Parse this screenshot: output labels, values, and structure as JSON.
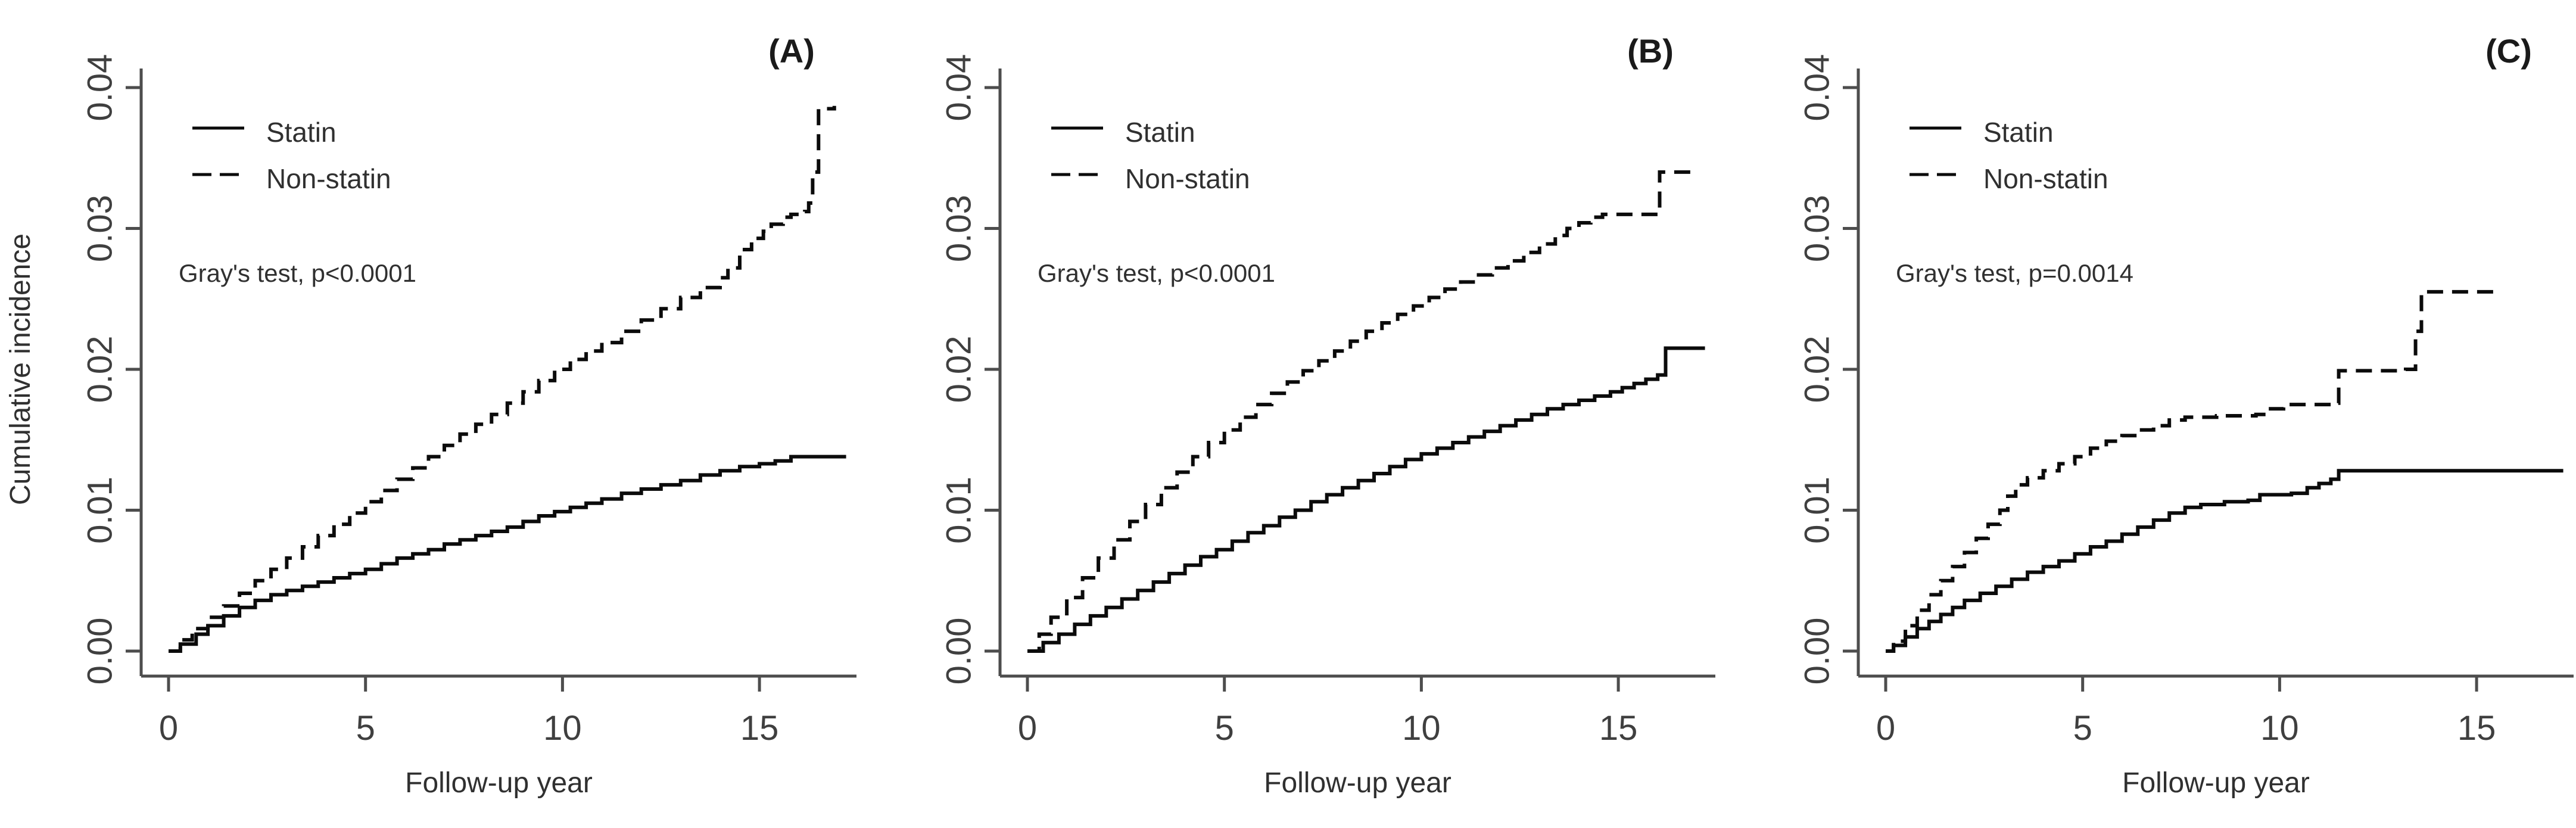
{
  "figure": {
    "background": "#ffffff",
    "xlabel": "Follow-up year",
    "ylabel": "Cumulative incidence",
    "legend": {
      "statin_label": "Statin",
      "non_statin_label": "Non-statin"
    },
    "x_tick_labels": [
      "0",
      "5",
      "10",
      "15"
    ],
    "y_tick_labels": [
      "0.00",
      "0.01",
      "0.02",
      "0.03",
      "0.04"
    ],
    "colors": {
      "curve": "#0b0b0b",
      "axis": "#4d4d4d",
      "tick_text": "#3f3f3f",
      "text": "#303030"
    }
  },
  "chart_data": [
    {
      "type": "line",
      "subtype": "step-cumulative-incidence",
      "panel_label": "(A)",
      "annotation": "Gray's test, p<0.0001",
      "xlabel": "Follow-up year",
      "ylabel": "Cumulative incidence",
      "xlim": [
        0,
        17.5
      ],
      "ylim": [
        0,
        0.04
      ],
      "x_ticks": [
        0,
        5,
        10,
        15
      ],
      "y_ticks": [
        0,
        0.01,
        0.02,
        0.03,
        0.04
      ],
      "grid": false,
      "legend_position": "inside-top-left",
      "series": [
        {
          "name": "Statin",
          "style": "solid",
          "points": [
            [
              0,
              0
            ],
            [
              0.3,
              0.0005
            ],
            [
              0.7,
              0.0012
            ],
            [
              1,
              0.0018
            ],
            [
              1.4,
              0.0025
            ],
            [
              1.8,
              0.0031
            ],
            [
              2.2,
              0.0036
            ],
            [
              2.6,
              0.004
            ],
            [
              3,
              0.0043
            ],
            [
              3.4,
              0.0046
            ],
            [
              3.8,
              0.0049
            ],
            [
              4.2,
              0.0052
            ],
            [
              4.6,
              0.0055
            ],
            [
              5,
              0.0058
            ],
            [
              5.4,
              0.0062
            ],
            [
              5.8,
              0.0066
            ],
            [
              6.2,
              0.0069
            ],
            [
              6.6,
              0.0072
            ],
            [
              7,
              0.0076
            ],
            [
              7.4,
              0.0079
            ],
            [
              7.8,
              0.0082
            ],
            [
              8.2,
              0.0085
            ],
            [
              8.6,
              0.0088
            ],
            [
              9,
              0.0092
            ],
            [
              9.4,
              0.0096
            ],
            [
              9.8,
              0.0099
            ],
            [
              10.2,
              0.0102
            ],
            [
              10.6,
              0.0105
            ],
            [
              11,
              0.0108
            ],
            [
              11.5,
              0.0112
            ],
            [
              12,
              0.0115
            ],
            [
              12.5,
              0.0118
            ],
            [
              13,
              0.0121
            ],
            [
              13.5,
              0.0125
            ],
            [
              14,
              0.0128
            ],
            [
              14.5,
              0.0131
            ],
            [
              15,
              0.0133
            ],
            [
              15.4,
              0.0135
            ],
            [
              15.8,
              0.0138
            ],
            [
              17.2,
              0.0138
            ]
          ]
        },
        {
          "name": "Non-statin",
          "style": "dashed",
          "points": [
            [
              0,
              0
            ],
            [
              0.3,
              0.0008
            ],
            [
              0.6,
              0.0016
            ],
            [
              1,
              0.0024
            ],
            [
              1.4,
              0.0032
            ],
            [
              1.8,
              0.0041
            ],
            [
              2.2,
              0.005
            ],
            [
              2.6,
              0.0058
            ],
            [
              3,
              0.0066
            ],
            [
              3.4,
              0.0074
            ],
            [
              3.8,
              0.0082
            ],
            [
              4.2,
              0.009
            ],
            [
              4.6,
              0.0098
            ],
            [
              5,
              0.0106
            ],
            [
              5.4,
              0.0114
            ],
            [
              5.8,
              0.0122
            ],
            [
              6.2,
              0.013
            ],
            [
              6.6,
              0.0138
            ],
            [
              7,
              0.0146
            ],
            [
              7.4,
              0.0154
            ],
            [
              7.8,
              0.0161
            ],
            [
              8.2,
              0.0168
            ],
            [
              8.6,
              0.0176
            ],
            [
              9,
              0.0184
            ],
            [
              9.4,
              0.0192
            ],
            [
              9.8,
              0.02
            ],
            [
              10.2,
              0.0207
            ],
            [
              10.6,
              0.0213
            ],
            [
              11,
              0.0219
            ],
            [
              11.5,
              0.0227
            ],
            [
              12,
              0.0235
            ],
            [
              12.5,
              0.0243
            ],
            [
              13,
              0.0251
            ],
            [
              13.5,
              0.0258
            ],
            [
              14,
              0.0265
            ],
            [
              14.2,
              0.0272
            ],
            [
              14.5,
              0.0285
            ],
            [
              14.8,
              0.0293
            ],
            [
              15.1,
              0.0298
            ],
            [
              15.3,
              0.0303
            ],
            [
              15.6,
              0.0308
            ],
            [
              15.8,
              0.031
            ],
            [
              16.15,
              0.0312
            ],
            [
              16.25,
              0.0318
            ],
            [
              16.35,
              0.034
            ],
            [
              16.5,
              0.0385
            ],
            [
              16.9,
              0.0387
            ]
          ]
        }
      ]
    },
    {
      "type": "line",
      "subtype": "step-cumulative-incidence",
      "panel_label": "(B)",
      "annotation": "Gray's test, p<0.0001",
      "xlabel": "Follow-up year",
      "ylabel": "Cumulative incidence",
      "xlim": [
        0,
        17.5
      ],
      "ylim": [
        0,
        0.04
      ],
      "x_ticks": [
        0,
        5,
        10,
        15
      ],
      "y_ticks": [
        0,
        0.01,
        0.02,
        0.03,
        0.04
      ],
      "grid": false,
      "legend_position": "inside-top-left",
      "series": [
        {
          "name": "Statin",
          "style": "solid",
          "points": [
            [
              0,
              0
            ],
            [
              0.4,
              0.0006
            ],
            [
              0.8,
              0.0012
            ],
            [
              1.2,
              0.0019
            ],
            [
              1.6,
              0.0025
            ],
            [
              2,
              0.0031
            ],
            [
              2.4,
              0.0037
            ],
            [
              2.8,
              0.0043
            ],
            [
              3.2,
              0.0049
            ],
            [
              3.6,
              0.0055
            ],
            [
              4,
              0.0061
            ],
            [
              4.4,
              0.0067
            ],
            [
              4.8,
              0.0072
            ],
            [
              5.2,
              0.0078
            ],
            [
              5.6,
              0.0084
            ],
            [
              6,
              0.0089
            ],
            [
              6.4,
              0.0095
            ],
            [
              6.8,
              0.01
            ],
            [
              7.2,
              0.0106
            ],
            [
              7.6,
              0.0111
            ],
            [
              8,
              0.0116
            ],
            [
              8.4,
              0.0121
            ],
            [
              8.8,
              0.0126
            ],
            [
              9.2,
              0.0131
            ],
            [
              9.6,
              0.0136
            ],
            [
              10,
              0.014
            ],
            [
              10.4,
              0.0144
            ],
            [
              10.8,
              0.0148
            ],
            [
              11.2,
              0.0152
            ],
            [
              11.6,
              0.0156
            ],
            [
              12,
              0.016
            ],
            [
              12.4,
              0.0164
            ],
            [
              12.8,
              0.0168
            ],
            [
              13.2,
              0.0172
            ],
            [
              13.6,
              0.0175
            ],
            [
              14,
              0.0178
            ],
            [
              14.4,
              0.0181
            ],
            [
              14.8,
              0.0184
            ],
            [
              15.1,
              0.0187
            ],
            [
              15.4,
              0.019
            ],
            [
              15.7,
              0.0193
            ],
            [
              16,
              0.0196
            ],
            [
              16.2,
              0.0215
            ],
            [
              17.2,
              0.0215
            ]
          ]
        },
        {
          "name": "Non-statin",
          "style": "dashed",
          "points": [
            [
              0,
              0
            ],
            [
              0.3,
              0.0012
            ],
            [
              0.6,
              0.0024
            ],
            [
              1,
              0.0038
            ],
            [
              1.4,
              0.0052
            ],
            [
              1.8,
              0.0066
            ],
            [
              2.2,
              0.0079
            ],
            [
              2.6,
              0.0092
            ],
            [
              3,
              0.0104
            ],
            [
              3.4,
              0.0116
            ],
            [
              3.8,
              0.0127
            ],
            [
              4.2,
              0.0138
            ],
            [
              4.6,
              0.0148
            ],
            [
              5,
              0.0157
            ],
            [
              5.4,
              0.0166
            ],
            [
              5.8,
              0.0175
            ],
            [
              6.2,
              0.0183
            ],
            [
              6.6,
              0.0191
            ],
            [
              7,
              0.0199
            ],
            [
              7.4,
              0.0206
            ],
            [
              7.8,
              0.0213
            ],
            [
              8.2,
              0.022
            ],
            [
              8.6,
              0.0227
            ],
            [
              9,
              0.0233
            ],
            [
              9.4,
              0.0239
            ],
            [
              9.8,
              0.0245
            ],
            [
              10.2,
              0.0251
            ],
            [
              10.6,
              0.0257
            ],
            [
              11,
              0.0262
            ],
            [
              11.4,
              0.0267
            ],
            [
              11.8,
              0.0272
            ],
            [
              12.2,
              0.0277
            ],
            [
              12.6,
              0.0283
            ],
            [
              13,
              0.0289
            ],
            [
              13.4,
              0.0295
            ],
            [
              13.7,
              0.03
            ],
            [
              14,
              0.0304
            ],
            [
              14.3,
              0.0308
            ],
            [
              14.6,
              0.031
            ],
            [
              15.9,
              0.031
            ],
            [
              16.05,
              0.034
            ],
            [
              16.9,
              0.0342
            ]
          ]
        }
      ]
    },
    {
      "type": "line",
      "subtype": "step-cumulative-incidence",
      "panel_label": "(C)",
      "annotation": "Gray's test, p=0.0014",
      "xlabel": "Follow-up year",
      "ylabel": "Cumulative incidence",
      "xlim": [
        0,
        17.5
      ],
      "ylim": [
        0,
        0.04
      ],
      "x_ticks": [
        0,
        5,
        10,
        15
      ],
      "y_ticks": [
        0,
        0.01,
        0.02,
        0.03,
        0.04
      ],
      "grid": false,
      "legend_position": "inside-top-left",
      "series": [
        {
          "name": "Statin",
          "style": "solid",
          "points": [
            [
              0,
              0
            ],
            [
              0.2,
              0.0004
            ],
            [
              0.5,
              0.001
            ],
            [
              0.8,
              0.0016
            ],
            [
              1.1,
              0.0021
            ],
            [
              1.4,
              0.0026
            ],
            [
              1.7,
              0.0031
            ],
            [
              2,
              0.0036
            ],
            [
              2.4,
              0.0041
            ],
            [
              2.8,
              0.0046
            ],
            [
              3.2,
              0.0051
            ],
            [
              3.6,
              0.0056
            ],
            [
              4,
              0.006
            ],
            [
              4.4,
              0.0064
            ],
            [
              4.8,
              0.0069
            ],
            [
              5.2,
              0.0074
            ],
            [
              5.6,
              0.0078
            ],
            [
              6,
              0.0083
            ],
            [
              6.4,
              0.0088
            ],
            [
              6.8,
              0.0093
            ],
            [
              7.2,
              0.0098
            ],
            [
              7.6,
              0.0102
            ],
            [
              8,
              0.0104
            ],
            [
              8.6,
              0.0106
            ],
            [
              9.2,
              0.0107
            ],
            [
              9.5,
              0.0111
            ],
            [
              10.3,
              0.0112
            ],
            [
              10.7,
              0.0116
            ],
            [
              11,
              0.0119
            ],
            [
              11.3,
              0.0122
            ],
            [
              11.5,
              0.0128
            ],
            [
              17.2,
              0.0128
            ]
          ]
        },
        {
          "name": "Non-statin",
          "style": "dashed",
          "points": [
            [
              0,
              0
            ],
            [
              0.2,
              0.0007
            ],
            [
              0.5,
              0.0018
            ],
            [
              0.8,
              0.0029
            ],
            [
              1.1,
              0.004
            ],
            [
              1.4,
              0.005
            ],
            [
              1.7,
              0.006
            ],
            [
              2,
              0.007
            ],
            [
              2.3,
              0.008
            ],
            [
              2.6,
              0.009
            ],
            [
              2.9,
              0.01
            ],
            [
              3.1,
              0.011
            ],
            [
              3.3,
              0.0118
            ],
            [
              3.6,
              0.0123
            ],
            [
              4,
              0.0128
            ],
            [
              4.4,
              0.0133
            ],
            [
              4.8,
              0.0138
            ],
            [
              5.2,
              0.0144
            ],
            [
              5.6,
              0.0149
            ],
            [
              6,
              0.0153
            ],
            [
              6.4,
              0.0157
            ],
            [
              6.8,
              0.016
            ],
            [
              7.2,
              0.0164
            ],
            [
              7.6,
              0.0166
            ],
            [
              8.4,
              0.0167
            ],
            [
              9.4,
              0.0168
            ],
            [
              9.7,
              0.0172
            ],
            [
              10.1,
              0.0175
            ],
            [
              11.3,
              0.0176
            ],
            [
              11.5,
              0.0199
            ],
            [
              13.2,
              0.02
            ],
            [
              13.45,
              0.0227
            ],
            [
              13.6,
              0.0255
            ],
            [
              15.5,
              0.0256
            ]
          ]
        }
      ]
    }
  ]
}
